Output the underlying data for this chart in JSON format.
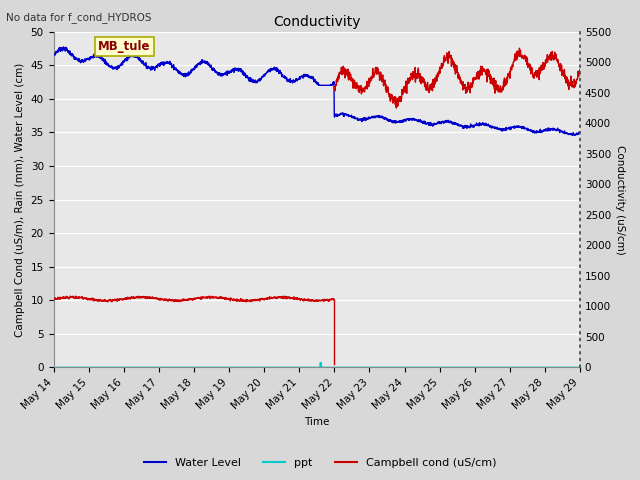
{
  "title": "Conductivity",
  "top_left_text": "No data for f_cond_HYDROS",
  "xlabel": "Time",
  "ylabel_left": "Campbell Cond (uS/m), Rain (mm), Water Level (cm)",
  "ylabel_right": "Conductivity (uS/cm)",
  "ylim_left": [
    0,
    50
  ],
  "ylim_right": [
    0,
    5500
  ],
  "yticks_left": [
    0,
    5,
    10,
    15,
    20,
    25,
    30,
    35,
    40,
    45,
    50
  ],
  "yticks_right": [
    0,
    500,
    1000,
    1500,
    2000,
    2500,
    3000,
    3500,
    4000,
    4500,
    5000,
    5500
  ],
  "xtick_labels": [
    "May 14",
    "May 15",
    "May 16",
    "May 17",
    "May 18",
    "May 19",
    "May 20",
    "May 21",
    "May 22",
    "May 23",
    "May 24",
    "May 25",
    "May 26",
    "May 27",
    "May 28",
    "May 29"
  ],
  "fig_bg_color": "#d8d8d8",
  "plot_bg_color": "#e8e8e8",
  "grid_color": "#ffffff",
  "box_label": "MB_tule",
  "box_bg": "#ffffcc",
  "box_border": "#aaaa00",
  "water_level_color": "#0000cc",
  "ppt_color": "#00cccc",
  "campbell_color": "#cc0000",
  "right_spine_color": "#444444",
  "tick_label_fontsize": 7.5,
  "axis_label_fontsize": 7.5,
  "title_fontsize": 10,
  "legend_fontsize": 8
}
